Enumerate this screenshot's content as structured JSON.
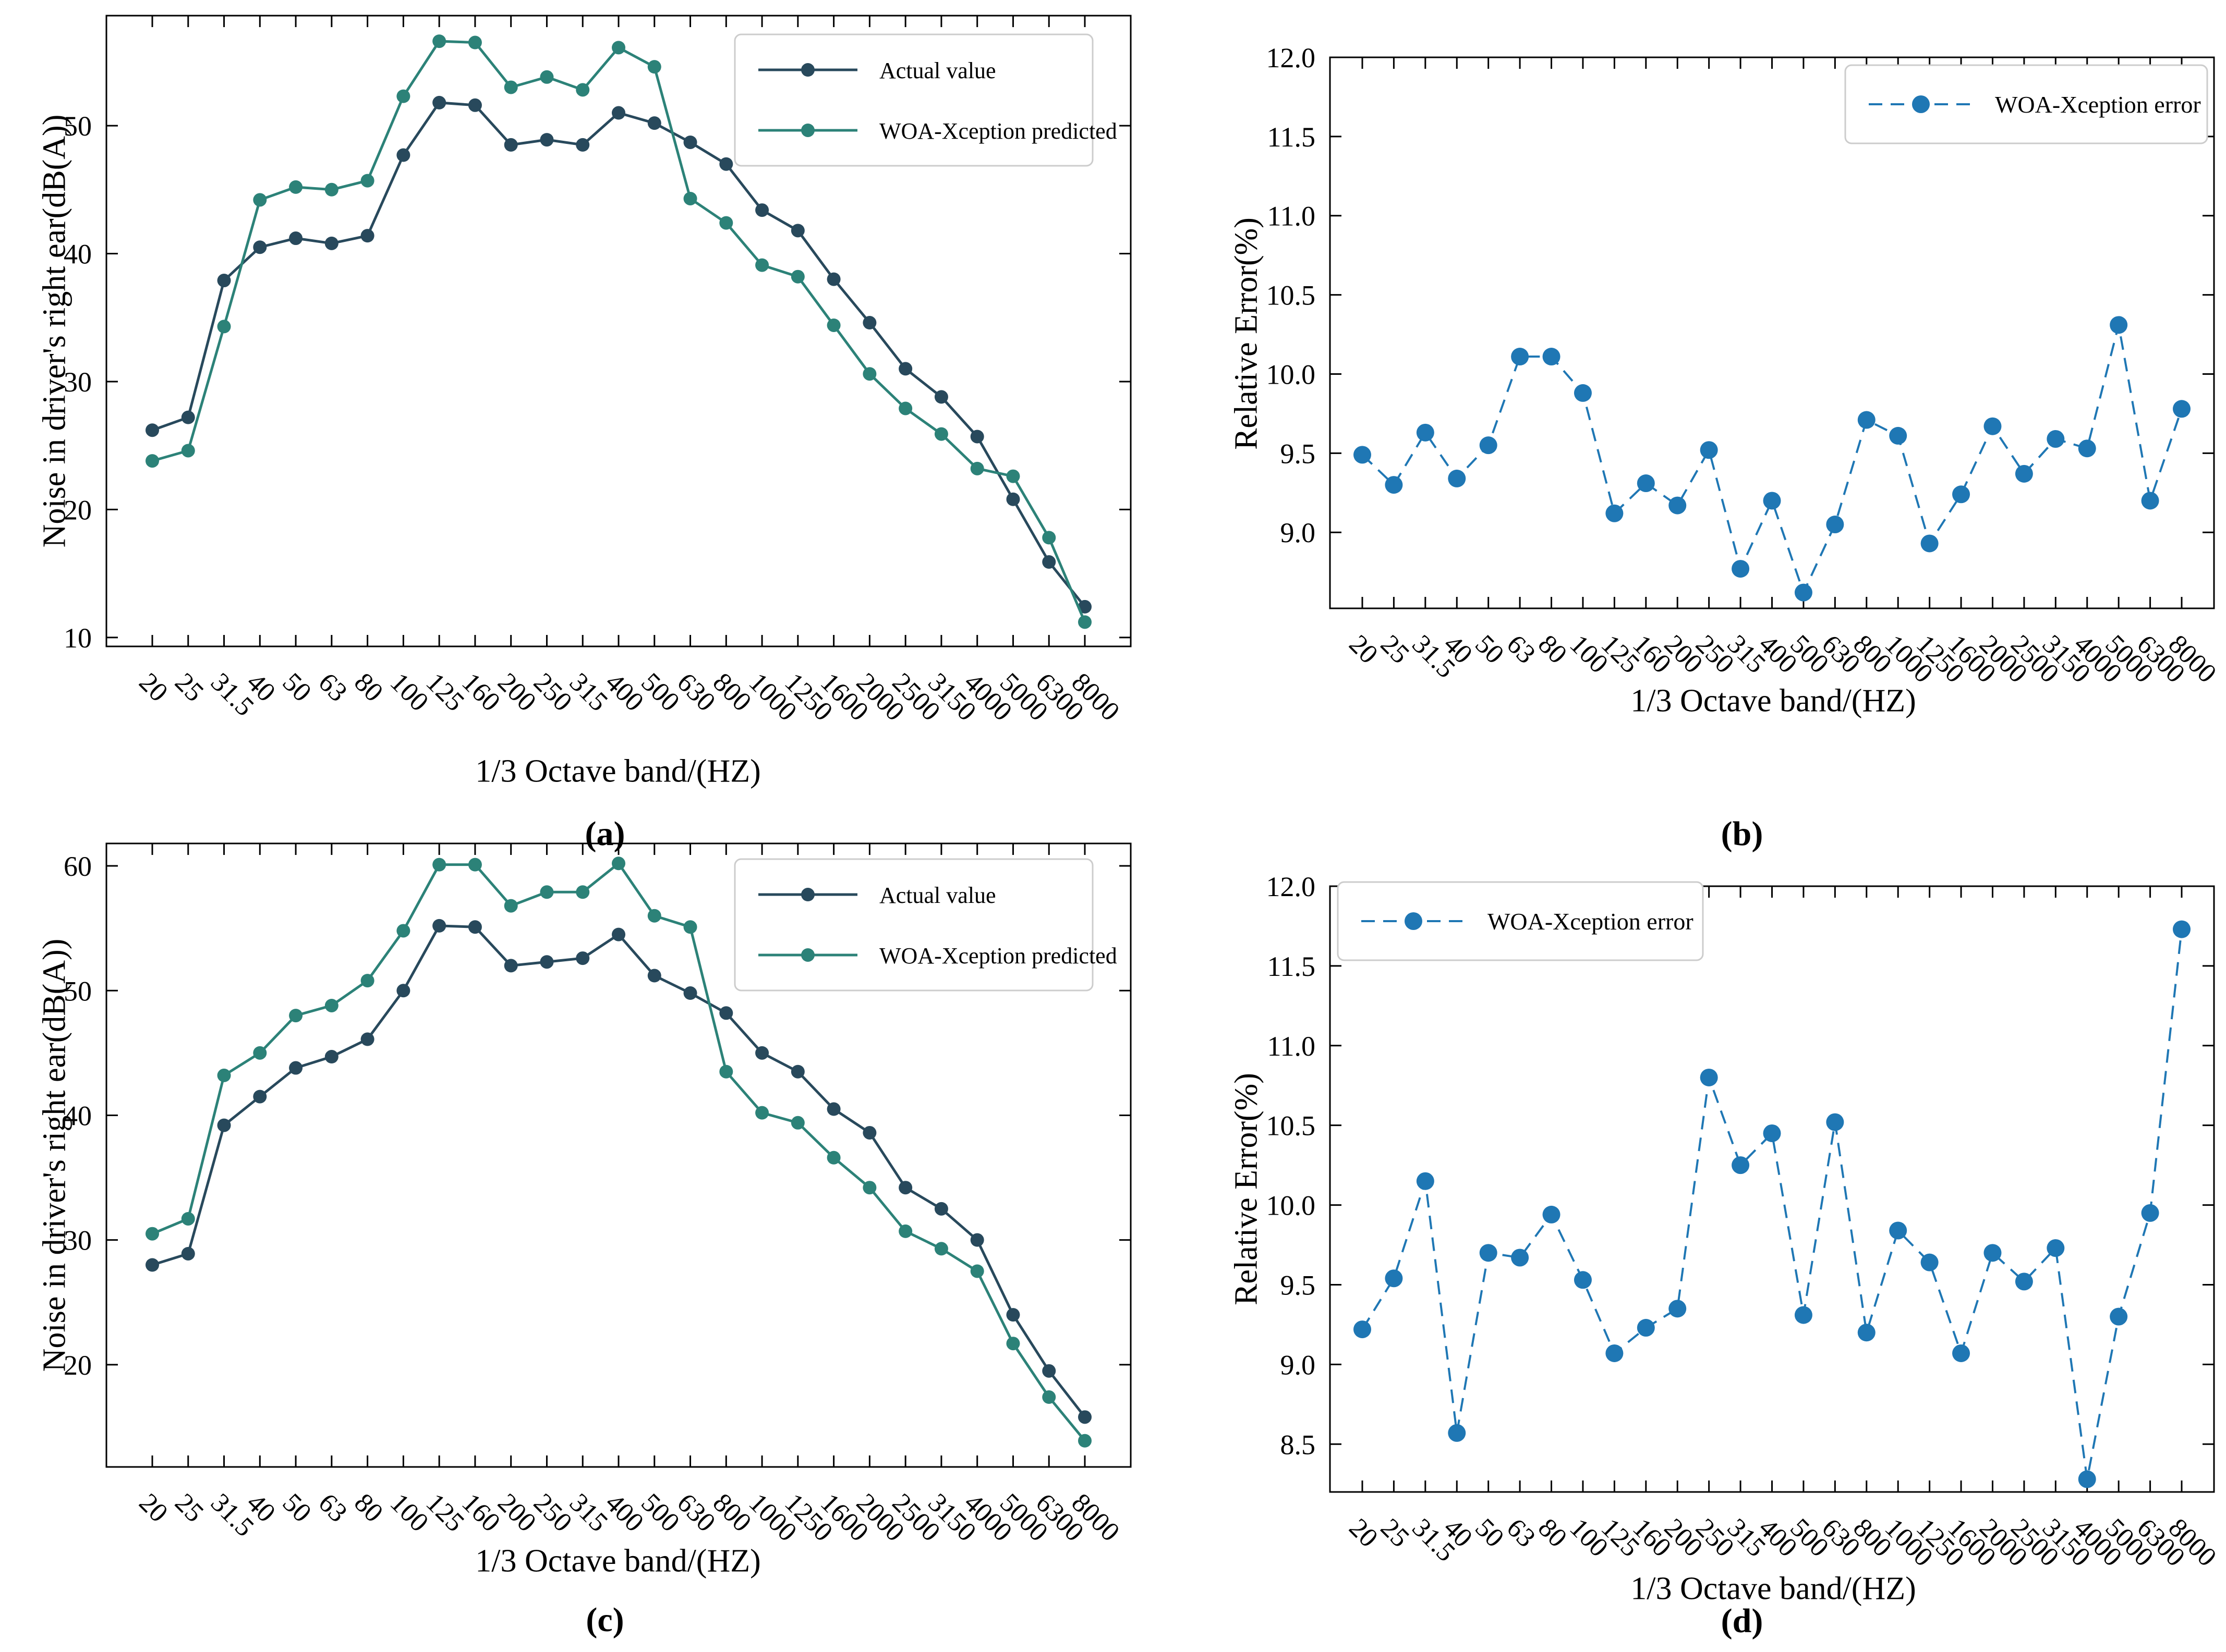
{
  "figure": {
    "type": "2x2 line chart figure",
    "x_axis_label": "1/3 Octave band/(HZ)"
  },
  "chart_data": [
    {
      "id": "a",
      "type": "line",
      "caption": "(a)",
      "xlabel": "1/3 Octave band/(HZ)",
      "ylabel": "Noise in driver's right ear(dB(A))",
      "categories": [
        "20",
        "25",
        "31.5",
        "40",
        "50",
        "63",
        "80",
        "100",
        "125",
        "160",
        "200",
        "250",
        "315",
        "400",
        "500",
        "630",
        "800",
        "1000",
        "1250",
        "1600",
        "2000",
        "2500",
        "3150",
        "4000",
        "5000",
        "6300",
        "8000"
      ],
      "ylim": [
        9.3,
        58.6
      ],
      "yticks": [
        10,
        20,
        30,
        40,
        50
      ],
      "ytick_labels": [
        "10",
        "20",
        "30",
        "40",
        "50"
      ],
      "grid": false,
      "legend": {
        "position": "top-right-inside",
        "entries": [
          "Actual value",
          "WOA-Xception predicted"
        ]
      },
      "series": [
        {
          "name": "Actual value",
          "color": "#28495c",
          "style": "solid",
          "values": [
            26.2,
            27.2,
            37.9,
            40.5,
            41.2,
            40.8,
            41.4,
            47.7,
            51.8,
            51.6,
            48.5,
            48.9,
            48.5,
            51.0,
            50.2,
            48.7,
            47.0,
            43.4,
            41.8,
            38.0,
            34.6,
            31.0,
            28.8,
            25.7,
            20.8,
            15.9,
            12.4
          ]
        },
        {
          "name": "WOA-Xception predicted",
          "color": "#2c8278",
          "style": "solid",
          "values": [
            23.8,
            24.6,
            34.3,
            44.2,
            45.2,
            45.0,
            45.7,
            52.3,
            56.6,
            56.5,
            53.0,
            53.8,
            52.8,
            56.1,
            54.6,
            44.3,
            42.4,
            39.1,
            38.2,
            34.4,
            30.6,
            27.9,
            25.9,
            23.2,
            22.6,
            17.8,
            11.2
          ]
        }
      ]
    },
    {
      "id": "b",
      "type": "line",
      "caption": "(b)",
      "xlabel": "1/3 Octave band/(HZ)",
      "ylabel": "Relative Error(%)",
      "categories": [
        "20",
        "25",
        "31.5",
        "40",
        "50",
        "63",
        "80",
        "100",
        "125",
        "160",
        "200",
        "250",
        "315",
        "400",
        "500",
        "630",
        "800",
        "1000",
        "1250",
        "1600",
        "2000",
        "2500",
        "3150",
        "4000",
        "5000",
        "6300",
        "8000"
      ],
      "ylim": [
        8.52,
        12.0
      ],
      "yticks": [
        9.0,
        9.5,
        10.0,
        10.5,
        11.0,
        11.5,
        12.0
      ],
      "ytick_labels": [
        "9.0",
        "9.5",
        "10.0",
        "10.5",
        "11.0",
        "11.5",
        "12.0"
      ],
      "grid": false,
      "legend": {
        "position": "top-right-inside",
        "entries": [
          "WOA-Xception error"
        ]
      },
      "series": [
        {
          "name": "WOA-Xception error",
          "color": "#1f77b4",
          "style": "dashed",
          "values": [
            9.49,
            9.3,
            9.63,
            9.34,
            9.55,
            10.11,
            10.11,
            9.88,
            9.12,
            9.31,
            9.17,
            9.52,
            8.77,
            9.2,
            8.62,
            9.05,
            9.71,
            9.61,
            8.93,
            9.24,
            9.67,
            9.37,
            9.59,
            9.53,
            10.31,
            9.2,
            9.78
          ]
        }
      ]
    },
    {
      "id": "c",
      "type": "line",
      "caption": "(c)",
      "xlabel": "1/3 Octave band/(HZ)",
      "ylabel": "Noise in driver's right ear(dB(A))",
      "categories": [
        "20",
        "25",
        "31.5",
        "40",
        "50",
        "63",
        "80",
        "100",
        "125",
        "160",
        "200",
        "250",
        "315",
        "400",
        "500",
        "630",
        "800",
        "1000",
        "1250",
        "1600",
        "2000",
        "2500",
        "3150",
        "4000",
        "5000",
        "6300",
        "8000"
      ],
      "ylim": [
        11.8,
        61.8
      ],
      "yticks": [
        20,
        30,
        40,
        50,
        60
      ],
      "ytick_labels": [
        "20",
        "30",
        "40",
        "50",
        "60"
      ],
      "grid": false,
      "legend": {
        "position": "top-right-inside",
        "entries": [
          "Actual value",
          "WOA-Xception predicted"
        ]
      },
      "series": [
        {
          "name": "Actual value",
          "color": "#28495c",
          "style": "solid",
          "values": [
            28.0,
            28.9,
            39.2,
            41.5,
            43.8,
            44.7,
            46.1,
            50.0,
            55.2,
            55.1,
            52.0,
            52.3,
            52.6,
            54.5,
            51.2,
            49.8,
            48.2,
            45.0,
            43.5,
            40.5,
            38.6,
            34.2,
            32.5,
            30.0,
            24.0,
            19.5,
            15.8
          ]
        },
        {
          "name": "WOA-Xception predicted",
          "color": "#2c8278",
          "style": "solid",
          "values": [
            30.5,
            31.7,
            43.2,
            45.0,
            48.0,
            48.8,
            50.8,
            54.8,
            60.1,
            60.1,
            56.8,
            57.9,
            57.9,
            60.2,
            56.0,
            55.1,
            43.5,
            40.2,
            39.4,
            36.6,
            34.2,
            30.7,
            29.3,
            27.5,
            21.7,
            17.4,
            13.9
          ]
        }
      ]
    },
    {
      "id": "d",
      "type": "line",
      "caption": "(d)",
      "xlabel": "1/3 Octave band/(HZ)",
      "ylabel": "Relative Error(%)",
      "categories": [
        "20",
        "25",
        "31.5",
        "40",
        "50",
        "63",
        "80",
        "100",
        "125",
        "160",
        "200",
        "250",
        "315",
        "400",
        "500",
        "630",
        "800",
        "1000",
        "1250",
        "1600",
        "2000",
        "2500",
        "3150",
        "4000",
        "5000",
        "6300",
        "8000"
      ],
      "ylim": [
        8.2,
        12.0
      ],
      "yticks": [
        8.5,
        9.0,
        9.5,
        10.0,
        10.5,
        11.0,
        11.5,
        12.0
      ],
      "ytick_labels": [
        "8.5",
        "9.0",
        "9.5",
        "10.0",
        "10.5",
        "11.0",
        "11.5",
        "12.0"
      ],
      "grid": false,
      "legend": {
        "position": "top-left-inside",
        "entries": [
          "WOA-Xception error"
        ]
      },
      "series": [
        {
          "name": "WOA-Xception error",
          "color": "#1f77b4",
          "style": "dashed",
          "values": [
            9.22,
            9.54,
            10.15,
            8.57,
            9.7,
            9.67,
            9.94,
            9.53,
            9.07,
            9.23,
            9.35,
            10.8,
            10.25,
            10.45,
            9.31,
            10.52,
            9.2,
            9.84,
            9.64,
            9.07,
            9.7,
            9.52,
            9.73,
            8.28,
            9.3,
            9.95,
            11.73
          ]
        }
      ]
    }
  ],
  "colors": {
    "actual": "#28495c",
    "predicted": "#2c8278",
    "error": "#1f77b4",
    "spine": "#000000",
    "legend_border": "#cccccc"
  }
}
